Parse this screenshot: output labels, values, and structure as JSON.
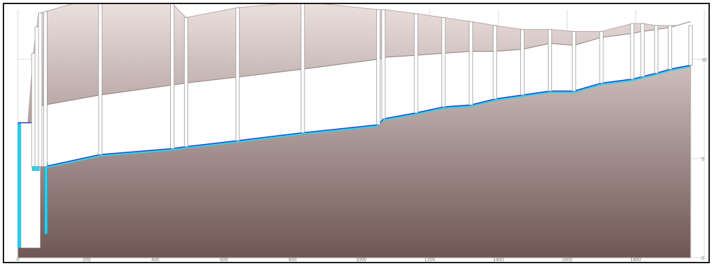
{
  "chart_data": {
    "type": "area",
    "title": "",
    "xlabel": "",
    "ylabel": "",
    "xlim": [
      0,
      2000
    ],
    "ylim": [
      0,
      12.5
    ],
    "x_ticks": [
      "0",
      "200",
      "400",
      "600",
      "800",
      "1000",
      "1200",
      "1400",
      "1600",
      "1800"
    ],
    "y_ticks": [
      "0",
      "5",
      "10"
    ],
    "grid": true,
    "colors": {
      "ground_top": "#efe4e2",
      "ground_bottom": "#6e5654",
      "pipe_band": "#ffffff",
      "water_line": "#2f3fbf",
      "water_fill": "#29d3ef"
    },
    "ground_surface": {
      "x": [
        0,
        45,
        60,
        80,
        240,
        450,
        490,
        640,
        830,
        1050,
        1070,
        1160,
        1240,
        1320,
        1390,
        1470,
        1550,
        1620,
        1700,
        1790,
        1820,
        1860,
        1900,
        1960
      ],
      "y": [
        0.5,
        10.3,
        12.3,
        12.4,
        13.2,
        12.8,
        12.1,
        12.6,
        12.9,
        12.5,
        12.5,
        12.3,
        12.1,
        11.9,
        11.7,
        11.5,
        11.5,
        11.4,
        11.4,
        11.8,
        11.8,
        11.7,
        11.7,
        11.7
      ]
    },
    "pipe_crown": {
      "x": [
        55,
        80,
        240,
        450,
        490,
        640,
        830,
        1050,
        1070,
        1160,
        1240,
        1320,
        1390,
        1470,
        1550,
        1620,
        1700,
        1790,
        1820,
        1860,
        1900,
        1960
      ],
      "y": [
        7.6,
        7.7,
        8.2,
        8.7,
        8.8,
        9.1,
        9.5,
        10.0,
        10.1,
        10.2,
        10.3,
        10.4,
        10.4,
        10.5,
        10.8,
        10.7,
        11.1,
        11.3,
        11.4,
        11.5,
        11.6,
        11.9
      ]
    },
    "series": [
      {
        "name": "",
        "x": [
          80,
          240,
          450,
          490,
          640,
          830,
          1050,
          1065,
          1160,
          1240,
          1320,
          1390,
          1470,
          1550,
          1620,
          1700,
          1790,
          1860,
          1900,
          1960
        ],
        "y": [
          4.6,
          5.2,
          5.5,
          5.6,
          5.9,
          6.3,
          6.7,
          7.0,
          7.3,
          7.6,
          7.7,
          8.0,
          8.2,
          8.4,
          8.4,
          8.8,
          9.0,
          9.3,
          9.5,
          9.7
        ]
      }
    ],
    "manholes_x": [
      0,
      45,
      55,
      65,
      80,
      240,
      450,
      490,
      640,
      830,
      1050,
      1065,
      1160,
      1240,
      1320,
      1390,
      1470,
      1550,
      1620,
      1700,
      1790,
      1820,
      1860,
      1900,
      1960
    ]
  }
}
